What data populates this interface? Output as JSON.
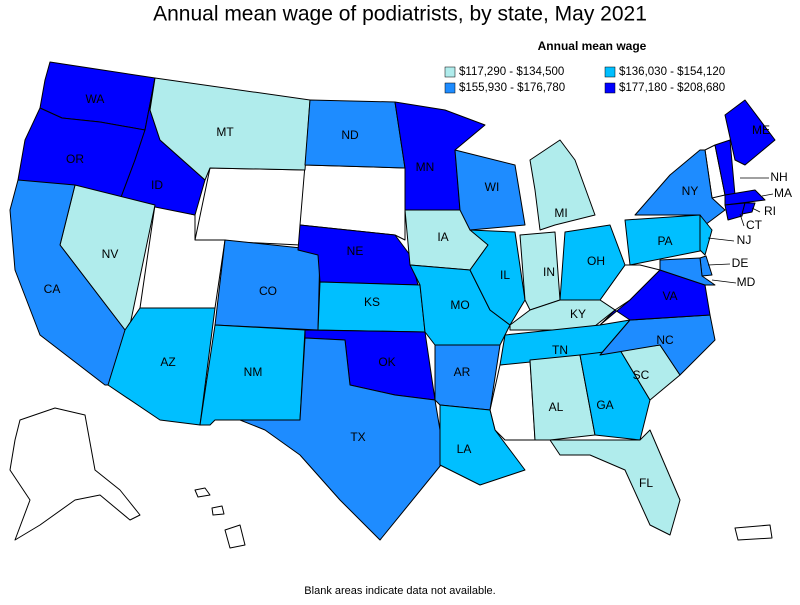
{
  "title": "Annual mean wage of podiatrists, by state, May 2021",
  "legend": {
    "title": "Annual mean wage",
    "items": [
      {
        "label": "$117,290 - $134,500",
        "color": "#b0ecec"
      },
      {
        "label": "$136,030 - $154,120",
        "color": "#00bfff"
      },
      {
        "label": "$155,930 - $176,780",
        "color": "#1e8cff"
      },
      {
        "label": "$177,180 - $208,680",
        "color": "#0000ff"
      }
    ]
  },
  "states": [
    {
      "label": "WA",
      "bin": 3
    },
    {
      "label": "OR",
      "bin": 3
    },
    {
      "label": "ID",
      "bin": 3
    },
    {
      "label": "MT",
      "bin": 0
    },
    {
      "label": "NV",
      "bin": 0
    },
    {
      "label": "CA",
      "bin": 2
    },
    {
      "label": "AZ",
      "bin": 1
    },
    {
      "label": "CO",
      "bin": 2
    },
    {
      "label": "NM",
      "bin": 1
    },
    {
      "label": "ND",
      "bin": 2
    },
    {
      "label": "NE",
      "bin": 3
    },
    {
      "label": "KS",
      "bin": 1
    },
    {
      "label": "OK",
      "bin": 3
    },
    {
      "label": "TX",
      "bin": 2
    },
    {
      "label": "MN",
      "bin": 3
    },
    {
      "label": "IA",
      "bin": 0
    },
    {
      "label": "MO",
      "bin": 1
    },
    {
      "label": "AR",
      "bin": 2
    },
    {
      "label": "LA",
      "bin": 1
    },
    {
      "label": "WI",
      "bin": 2
    },
    {
      "label": "IL",
      "bin": 1
    },
    {
      "label": "MI",
      "bin": 0
    },
    {
      "label": "IN",
      "bin": 0
    },
    {
      "label": "OH",
      "bin": 1
    },
    {
      "label": "KY",
      "bin": 0
    },
    {
      "label": "TN",
      "bin": 1
    },
    {
      "label": "AL",
      "bin": 0
    },
    {
      "label": "GA",
      "bin": 1
    },
    {
      "label": "FL",
      "bin": 0
    },
    {
      "label": "SC",
      "bin": 0
    },
    {
      "label": "NC",
      "bin": 2
    },
    {
      "label": "VA",
      "bin": 3
    },
    {
      "label": "PA",
      "bin": 1
    },
    {
      "label": "NY",
      "bin": 2
    },
    {
      "label": "ME",
      "bin": 3
    },
    {
      "label": "NH",
      "bin": 3
    },
    {
      "label": "MA",
      "bin": 3
    },
    {
      "label": "CT",
      "bin": 3
    },
    {
      "label": "RI",
      "bin": 3
    },
    {
      "label": "NJ",
      "bin": 1
    },
    {
      "label": "DE",
      "bin": 2
    },
    {
      "label": "MD",
      "bin": 2
    }
  ],
  "note": "Blank areas indicate data not available."
}
